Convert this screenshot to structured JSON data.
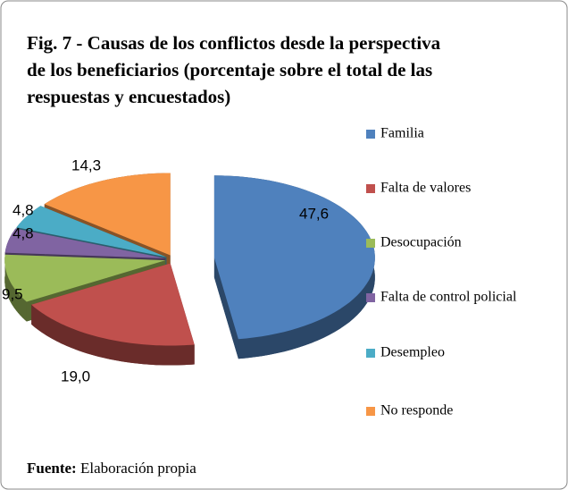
{
  "chart_data": {
    "type": "pie3d",
    "title_lines": [
      "Fig. 7 - Causas de los conflictos desde la perspectiva",
      "de los beneficiarios (porcentaje sobre el total de las",
      "respuestas y encuestados)"
    ],
    "categories": [
      "Familia",
      "Falta de valores",
      "Desocupación",
      "Falta de control policial",
      "Desempleo",
      "No responde"
    ],
    "values": [
      47.6,
      19.0,
      9.5,
      4.8,
      4.8,
      14.3
    ],
    "value_labels": [
      "47,6",
      "19,0",
      "9,5",
      "4,8",
      "4,8",
      "14,3"
    ],
    "colors": [
      "#4f81bd",
      "#c0504d",
      "#9bbb59",
      "#8064a2",
      "#4bacc6",
      "#f79646"
    ],
    "legend": "right",
    "source_label": "Fuente:",
    "source": "Elaboración propia"
  }
}
